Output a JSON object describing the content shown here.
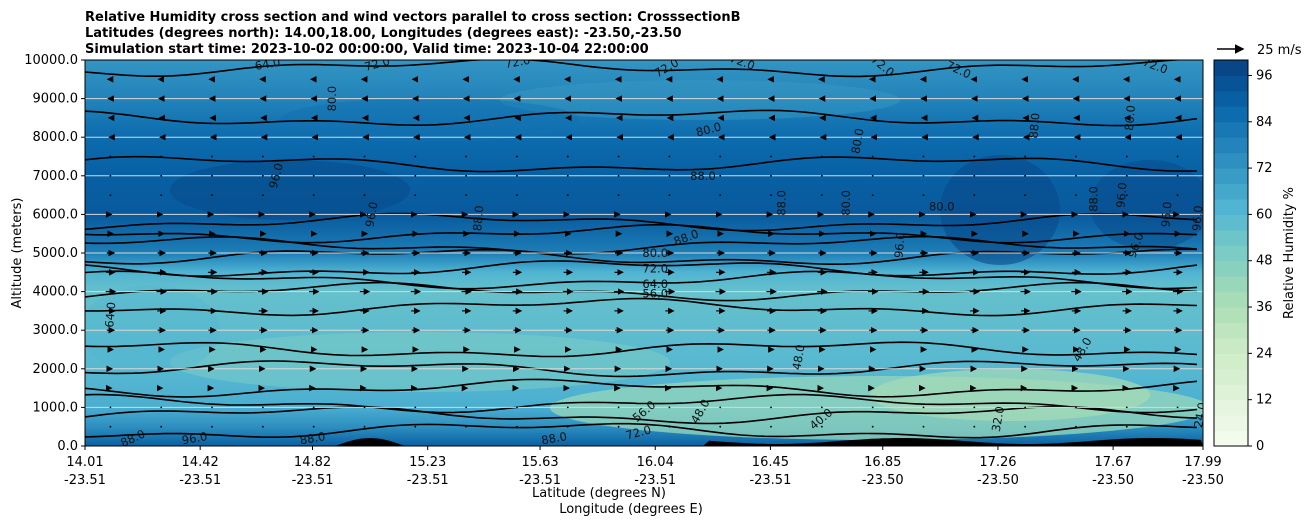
{
  "chart_data": {
    "type": "heatmap",
    "title_lines": [
      "Relative Humidity cross section and wind vectors parallel to cross section: CrosssectionB",
      "Latitudes (degrees north): 14.00,18.00, Longitudes (degrees east): -23.50,-23.50",
      "Simulation start time: 2023-10-02 00:00:00, Valid time: 2023-10-04 22:00:00"
    ],
    "xlabel_lines": [
      "Latitude (degrees N)",
      "Longitude (degrees E)"
    ],
    "ylabel": "Altitude (meters)",
    "x_ticks": [
      {
        "lat": 14.01,
        "lat_label": "14.01",
        "lon_label": "-23.51"
      },
      {
        "lat": 14.42,
        "lat_label": "14.42",
        "lon_label": "-23.51"
      },
      {
        "lat": 14.82,
        "lat_label": "14.82",
        "lon_label": "-23.51"
      },
      {
        "lat": 15.23,
        "lat_label": "15.23",
        "lon_label": "-23.51"
      },
      {
        "lat": 15.63,
        "lat_label": "15.63",
        "lon_label": "-23.51"
      },
      {
        "lat": 16.04,
        "lat_label": "16.04",
        "lon_label": "-23.51"
      },
      {
        "lat": 16.45,
        "lat_label": "16.45",
        "lon_label": "-23.51"
      },
      {
        "lat": 16.85,
        "lat_label": "16.85",
        "lon_label": "-23.50"
      },
      {
        "lat": 17.26,
        "lat_label": "17.26",
        "lon_label": "-23.50"
      },
      {
        "lat": 17.67,
        "lat_label": "17.67",
        "lon_label": "-23.50"
      },
      {
        "lat": 17.99,
        "lat_label": "17.99",
        "lon_label": "-23.50"
      }
    ],
    "xlim": [
      14.01,
      17.99
    ],
    "ylim": [
      0,
      10000
    ],
    "y_ticks": [
      0,
      1000,
      2000,
      3000,
      4000,
      5000,
      6000,
      7000,
      8000,
      9000,
      10000
    ],
    "y_tick_labels": [
      "0.0",
      "1000.0",
      "2000.0",
      "3000.0",
      "4000.0",
      "5000.0",
      "6000.0",
      "7000.0",
      "8000.0",
      "9000.0",
      "10000.0"
    ],
    "grid": "horizontal",
    "colorbar": {
      "label": "Relative Humidity %",
      "levels": [
        0,
        4,
        8,
        12,
        16,
        20,
        24,
        28,
        32,
        36,
        40,
        44,
        48,
        52,
        56,
        60,
        64,
        68,
        72,
        76,
        80,
        84,
        88,
        92,
        96,
        100
      ],
      "ticks": [
        0,
        12,
        24,
        36,
        48,
        60,
        72,
        84,
        96
      ],
      "tick_labels": [
        "0",
        "12",
        "24",
        "36",
        "48",
        "60",
        "72",
        "84",
        "96"
      ],
      "colormap": "GnBu"
    },
    "rh_profile": [
      {
        "altitude": 0,
        "rh": 90
      },
      {
        "altitude": 500,
        "rh": 74
      },
      {
        "altitude": 1000,
        "rh": 64
      },
      {
        "altitude": 2000,
        "rh": 60
      },
      {
        "altitude": 3000,
        "rh": 58
      },
      {
        "altitude": 4000,
        "rh": 56
      },
      {
        "altitude": 4500,
        "rh": 62
      },
      {
        "altitude": 5000,
        "rh": 80
      },
      {
        "altitude": 6000,
        "rh": 92
      },
      {
        "altitude": 7000,
        "rh": 90
      },
      {
        "altitude": 8000,
        "rh": 86
      },
      {
        "altitude": 9000,
        "rh": 78
      },
      {
        "altitude": 10000,
        "rh": 72
      }
    ],
    "contour_labels": [
      {
        "text": "64.0",
        "lat": 14.66,
        "alt": 9900,
        "rot": -10
      },
      {
        "text": "72.0",
        "lat": 15.05,
        "alt": 9900,
        "rot": -15
      },
      {
        "text": "72.0",
        "lat": 15.55,
        "alt": 9950,
        "rot": -10
      },
      {
        "text": "72.0",
        "lat": 16.08,
        "alt": 9800,
        "rot": -30
      },
      {
        "text": "72.0",
        "lat": 16.35,
        "alt": 9950,
        "rot": 20
      },
      {
        "text": "72.0",
        "lat": 16.85,
        "alt": 9850,
        "rot": 40
      },
      {
        "text": "72.0",
        "lat": 17.12,
        "alt": 9750,
        "rot": 25
      },
      {
        "text": "72.0",
        "lat": 17.82,
        "alt": 9850,
        "rot": 20
      },
      {
        "text": "80.0",
        "lat": 14.89,
        "alt": 9000,
        "rot": -90
      },
      {
        "text": "80.0",
        "lat": 16.23,
        "alt": 8200,
        "rot": -15
      },
      {
        "text": "80.0",
        "lat": 16.76,
        "alt": 7900,
        "rot": -80
      },
      {
        "text": "80.0",
        "lat": 17.73,
        "alt": 8500,
        "rot": -85
      },
      {
        "text": "80.0",
        "lat": 16.72,
        "alt": 6300,
        "rot": -90
      },
      {
        "text": "80.0",
        "lat": 17.06,
        "alt": 6200,
        "rot": 0
      },
      {
        "text": "80.0",
        "lat": 16.04,
        "alt": 5000,
        "rot": 0
      },
      {
        "text": "88.0",
        "lat": 16.21,
        "alt": 7000,
        "rot": 0
      },
      {
        "text": "88.0",
        "lat": 17.39,
        "alt": 8300,
        "rot": -85
      },
      {
        "text": "88.0",
        "lat": 16.49,
        "alt": 6300,
        "rot": -90
      },
      {
        "text": "88.0",
        "lat": 15.41,
        "alt": 5900,
        "rot": -85
      },
      {
        "text": "88.0",
        "lat": 16.15,
        "alt": 5400,
        "rot": -20
      },
      {
        "text": "88.0",
        "lat": 17.6,
        "alt": 6400,
        "rot": -90
      },
      {
        "text": "96.0",
        "lat": 14.69,
        "alt": 7000,
        "rot": -75
      },
      {
        "text": "96.0",
        "lat": 15.03,
        "alt": 6000,
        "rot": -80
      },
      {
        "text": "96.0",
        "lat": 16.91,
        "alt": 5200,
        "rot": -85
      },
      {
        "text": "96.0",
        "lat": 17.7,
        "alt": 6500,
        "rot": -85
      },
      {
        "text": "96.0",
        "lat": 17.75,
        "alt": 5200,
        "rot": -70
      },
      {
        "text": "96.0",
        "lat": 17.86,
        "alt": 6000,
        "rot": -85
      },
      {
        "text": "96.0",
        "lat": 17.97,
        "alt": 5900,
        "rot": -85
      },
      {
        "text": "72.0",
        "lat": 16.04,
        "alt": 4600,
        "rot": 0
      },
      {
        "text": "64.0",
        "lat": 16.04,
        "alt": 4200,
        "rot": 0
      },
      {
        "text": "56.0",
        "lat": 16.04,
        "alt": 3950,
        "rot": 0
      },
      {
        "text": "64.0",
        "lat": 14.1,
        "alt": 3400,
        "rot": -85
      },
      {
        "text": "48.0",
        "lat": 16.55,
        "alt": 2300,
        "rot": -80
      },
      {
        "text": "48.0",
        "lat": 17.56,
        "alt": 2500,
        "rot": -60
      },
      {
        "text": "56.0",
        "lat": 16.0,
        "alt": 900,
        "rot": -40
      },
      {
        "text": "48.0",
        "lat": 16.2,
        "alt": 900,
        "rot": -60
      },
      {
        "text": "40.0",
        "lat": 16.63,
        "alt": 700,
        "rot": -40
      },
      {
        "text": "32.0",
        "lat": 17.26,
        "alt": 700,
        "rot": -80
      },
      {
        "text": "24.0",
        "lat": 17.98,
        "alt": 800,
        "rot": -80
      },
      {
        "text": "88.0",
        "lat": 14.18,
        "alt": 200,
        "rot": -25
      },
      {
        "text": "96.0",
        "lat": 14.4,
        "alt": 200,
        "rot": -10
      },
      {
        "text": "88.0",
        "lat": 14.82,
        "alt": 200,
        "rot": -10
      },
      {
        "text": "88.0",
        "lat": 15.68,
        "alt": 200,
        "rot": -10
      },
      {
        "text": "72.0",
        "lat": 15.98,
        "alt": 350,
        "rot": -15
      }
    ],
    "wind_reference": {
      "label": "25 m/s",
      "speed": 25
    },
    "wind_profile": [
      {
        "altitude": 9500,
        "u": -5
      },
      {
        "altitude": 9000,
        "u": -4
      },
      {
        "altitude": 8500,
        "u": -3
      },
      {
        "altitude": 8000,
        "u": -2
      },
      {
        "altitude": 7500,
        "u": -1
      },
      {
        "altitude": 7000,
        "u": 0
      },
      {
        "altitude": 6500,
        "u": 1
      },
      {
        "altitude": 6000,
        "u": 2
      },
      {
        "altitude": 5500,
        "u": 5
      },
      {
        "altitude": 5000,
        "u": 7
      },
      {
        "altitude": 4500,
        "u": 8
      },
      {
        "altitude": 4000,
        "u": 9
      },
      {
        "altitude": 3500,
        "u": 8
      },
      {
        "altitude": 3000,
        "u": 7
      },
      {
        "altitude": 2500,
        "u": 5
      },
      {
        "altitude": 2000,
        "u": 3
      },
      {
        "altitude": 1500,
        "u": 2
      },
      {
        "altitude": 1000,
        "u": 1
      },
      {
        "altitude": 500,
        "u": 1
      }
    ]
  }
}
